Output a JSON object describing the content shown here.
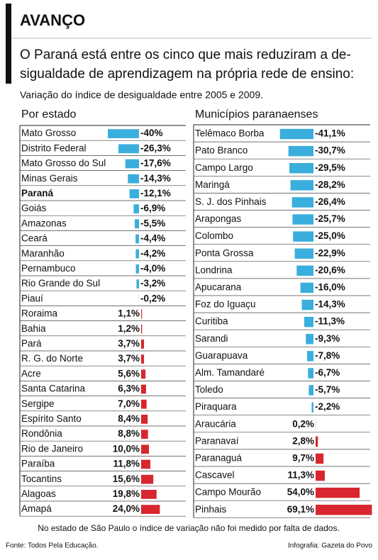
{
  "header": {
    "title": "AVANÇO",
    "subtitle": [
      "O Paraná está entre os cinco que mais reduziram a de-",
      "sigualdade de aprendizagem na própria rede de ensino:"
    ],
    "description": "Variação do índice de desigualdade entre 2005 e 2009."
  },
  "chart_data": [
    {
      "type": "bar",
      "orientation": "horizontal",
      "title": "Por estado",
      "categories": [
        "Mato Grosso",
        "Distrito Federal",
        "Mato Grosso do Sul",
        "Minas Gerais",
        "Paraná",
        "Goiás",
        "Amazonas",
        "Ceará",
        "Maranhão",
        "Pernambuco",
        "Rio Grande do Sul",
        "Piauí",
        "Roraima",
        "Bahia",
        "Pará",
        "R. G. do Norte",
        "Acre",
        "Santa Catarina",
        "Sergipe",
        "Espírito Santo",
        "Rondônia",
        "Rio de Janeiro",
        "Paraíba",
        "Tocantins",
        "Alagoas",
        "Amapá"
      ],
      "values": [
        -40,
        -26.3,
        -17.6,
        -14.3,
        -12.1,
        -6.9,
        -5.5,
        -4.4,
        -4.2,
        -4.0,
        -3.2,
        -0.2,
        1.1,
        1.2,
        3.7,
        3.7,
        5.6,
        6.3,
        7.0,
        8.4,
        8.8,
        10.0,
        11.8,
        15.6,
        19.8,
        24.0
      ],
      "value_labels": [
        "-40%",
        "-26,3%",
        "-17,6%",
        "-14,3%",
        "-12,1%",
        "-6,9%",
        "-5,5%",
        "-4,4%",
        "-4,2%",
        "-4,0%",
        "-3,2%",
        "-0,2%",
        "1,1%",
        "1,2%",
        "3,7%",
        "3,7%",
        "5,6%",
        "6,3%",
        "7,0%",
        "8,4%",
        "8,8%",
        "10,0%",
        "11,8%",
        "15,6%",
        "19,8%",
        "24,0%"
      ],
      "highlight_index": 4,
      "colors": {
        "negative": "#3aaedc",
        "positive": "#d7262e"
      }
    },
    {
      "type": "bar",
      "orientation": "horizontal",
      "title": "Municípios paranaenses",
      "categories": [
        "Telêmaco Borba",
        "Pato Branco",
        "Campo Largo",
        "Maringá",
        "S. J. dos Pinhais",
        "Arapongas",
        "Colombo",
        "Ponta Grossa",
        "Londrina",
        "Apucarana",
        "Foz do Iguaçu",
        "Curitiba",
        "Sarandi",
        "Guarapuava",
        "Alm. Tamandaré",
        "Toledo",
        "Piraquara",
        "Araucária",
        "Paranavaí",
        "Paranaguá",
        "Cascavel",
        "Campo Mourão",
        "Pinhais"
      ],
      "values": [
        -41.1,
        -30.7,
        -29.5,
        -28.2,
        -26.4,
        -25.7,
        -25.0,
        -22.9,
        -20.6,
        -16.0,
        -14.3,
        -11.3,
        -9.3,
        -7.8,
        -6.7,
        -5.7,
        -2.2,
        0.2,
        2.8,
        9.7,
        11.3,
        54.0,
        69.1
      ],
      "value_labels": [
        "-41,1%",
        "-30,7%",
        "-29,5%",
        "-28,2%",
        "-26,4%",
        "-25,7%",
        "-25,0%",
        "-22,9%",
        "-20,6%",
        "-16,0%",
        "-14,3%",
        "-11,3%",
        "-9,3%",
        "-7,8%",
        "-6,7%",
        "-5,7%",
        "-2,2%",
        "0,2%",
        "2,8%",
        "9,7%",
        "11,3%",
        "54,0%",
        "69,1%"
      ],
      "colors": {
        "negative": "#3aaedc",
        "positive": "#d7262e"
      }
    }
  ],
  "footer": {
    "note": "No estado de São Paulo o índice de variação não foi medido por falta de dados.",
    "source": "Fonte: Todos Pela Educação.",
    "credit": "Infografia: Gazeta do Povo"
  }
}
